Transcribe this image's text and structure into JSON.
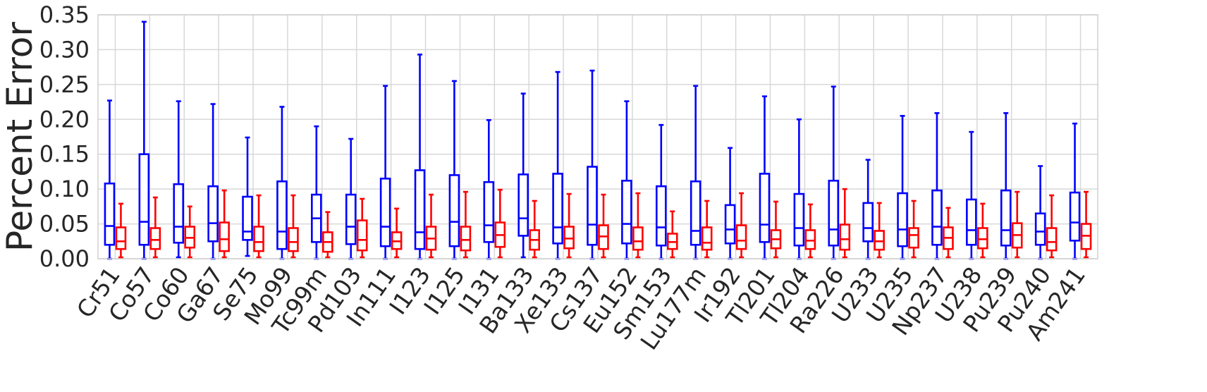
{
  "chart_data": {
    "type": "boxplot",
    "ylabel": "Percent Error",
    "ylim": [
      0,
      0.35
    ],
    "yticks": [
      "0.00",
      "0.05",
      "0.10",
      "0.15",
      "0.20",
      "0.25",
      "0.30",
      "0.35"
    ],
    "grid": true,
    "categories": [
      "Cr51",
      "Co57",
      "Co60",
      "Ga67",
      "Se75",
      "Mo99",
      "Tc99m",
      "Pd103",
      "In111",
      "I123",
      "I125",
      "I131",
      "Ba133",
      "Xe133",
      "Cs137",
      "Eu152",
      "Sm153",
      "Lu177m",
      "Ir192",
      "Tl201",
      "Tl204",
      "Ra226",
      "U233",
      "U235",
      "Np237",
      "U238",
      "Pu239",
      "Pu240",
      "Am241"
    ],
    "series": [
      {
        "color": "#0000ff",
        "boxes": [
          {
            "min": 0.0,
            "q1": 0.02,
            "median": 0.047,
            "q3": 0.108,
            "max": 0.227
          },
          {
            "min": 0.0,
            "q1": 0.02,
            "median": 0.053,
            "q3": 0.15,
            "max": 0.34
          },
          {
            "min": 0.002,
            "q1": 0.023,
            "median": 0.046,
            "q3": 0.107,
            "max": 0.226
          },
          {
            "min": 0.0,
            "q1": 0.025,
            "median": 0.051,
            "q3": 0.104,
            "max": 0.222
          },
          {
            "min": 0.004,
            "q1": 0.027,
            "median": 0.039,
            "q3": 0.089,
            "max": 0.174
          },
          {
            "min": 0.0,
            "q1": 0.014,
            "median": 0.039,
            "q3": 0.111,
            "max": 0.218
          },
          {
            "min": 0.0,
            "q1": 0.024,
            "median": 0.058,
            "q3": 0.092,
            "max": 0.19
          },
          {
            "min": 0.0,
            "q1": 0.021,
            "median": 0.046,
            "q3": 0.092,
            "max": 0.172
          },
          {
            "min": 0.0,
            "q1": 0.018,
            "median": 0.046,
            "q3": 0.115,
            "max": 0.248
          },
          {
            "min": 0.0,
            "q1": 0.014,
            "median": 0.038,
            "q3": 0.127,
            "max": 0.293
          },
          {
            "min": 0.0,
            "q1": 0.018,
            "median": 0.053,
            "q3": 0.12,
            "max": 0.255
          },
          {
            "min": 0.0,
            "q1": 0.024,
            "median": 0.048,
            "q3": 0.11,
            "max": 0.199
          },
          {
            "min": 0.002,
            "q1": 0.033,
            "median": 0.058,
            "q3": 0.121,
            "max": 0.237
          },
          {
            "min": 0.0,
            "q1": 0.022,
            "median": 0.045,
            "q3": 0.122,
            "max": 0.268
          },
          {
            "min": 0.0,
            "q1": 0.02,
            "median": 0.049,
            "q3": 0.132,
            "max": 0.27
          },
          {
            "min": 0.0,
            "q1": 0.022,
            "median": 0.05,
            "q3": 0.112,
            "max": 0.226
          },
          {
            "min": 0.0,
            "q1": 0.019,
            "median": 0.045,
            "q3": 0.104,
            "max": 0.192
          },
          {
            "min": 0.0,
            "q1": 0.02,
            "median": 0.04,
            "q3": 0.111,
            "max": 0.248
          },
          {
            "min": 0.0,
            "q1": 0.022,
            "median": 0.042,
            "q3": 0.077,
            "max": 0.159
          },
          {
            "min": 0.0,
            "q1": 0.024,
            "median": 0.049,
            "q3": 0.122,
            "max": 0.233
          },
          {
            "min": 0.0,
            "q1": 0.019,
            "median": 0.044,
            "q3": 0.093,
            "max": 0.2
          },
          {
            "min": 0.0,
            "q1": 0.019,
            "median": 0.042,
            "q3": 0.112,
            "max": 0.247
          },
          {
            "min": 0.0,
            "q1": 0.025,
            "median": 0.044,
            "q3": 0.08,
            "max": 0.142
          },
          {
            "min": 0.0,
            "q1": 0.018,
            "median": 0.042,
            "q3": 0.094,
            "max": 0.205
          },
          {
            "min": 0.0,
            "q1": 0.02,
            "median": 0.046,
            "q3": 0.098,
            "max": 0.209
          },
          {
            "min": 0.0,
            "q1": 0.02,
            "median": 0.041,
            "q3": 0.085,
            "max": 0.182
          },
          {
            "min": 0.0,
            "q1": 0.019,
            "median": 0.041,
            "q3": 0.098,
            "max": 0.209
          },
          {
            "min": 0.0,
            "q1": 0.02,
            "median": 0.039,
            "q3": 0.065,
            "max": 0.133
          },
          {
            "min": 0.0,
            "q1": 0.026,
            "median": 0.052,
            "q3": 0.095,
            "max": 0.194
          }
        ]
      },
      {
        "color": "#ff0000",
        "boxes": [
          {
            "min": 0.002,
            "q1": 0.014,
            "median": 0.025,
            "q3": 0.045,
            "max": 0.079
          },
          {
            "min": 0.002,
            "q1": 0.014,
            "median": 0.027,
            "q3": 0.044,
            "max": 0.088
          },
          {
            "min": 0.002,
            "q1": 0.016,
            "median": 0.03,
            "q3": 0.046,
            "max": 0.075
          },
          {
            "min": 0.002,
            "q1": 0.011,
            "median": 0.028,
            "q3": 0.052,
            "max": 0.098
          },
          {
            "min": 0.002,
            "q1": 0.011,
            "median": 0.024,
            "q3": 0.046,
            "max": 0.091
          },
          {
            "min": 0.002,
            "q1": 0.011,
            "median": 0.024,
            "q3": 0.044,
            "max": 0.091
          },
          {
            "min": 0.002,
            "q1": 0.01,
            "median": 0.024,
            "q3": 0.038,
            "max": 0.067
          },
          {
            "min": 0.002,
            "q1": 0.012,
            "median": 0.027,
            "q3": 0.055,
            "max": 0.086
          },
          {
            "min": 0.002,
            "q1": 0.014,
            "median": 0.025,
            "q3": 0.038,
            "max": 0.072
          },
          {
            "min": 0.002,
            "q1": 0.013,
            "median": 0.029,
            "q3": 0.046,
            "max": 0.092
          },
          {
            "min": 0.002,
            "q1": 0.012,
            "median": 0.027,
            "q3": 0.046,
            "max": 0.096
          },
          {
            "min": 0.002,
            "q1": 0.017,
            "median": 0.034,
            "q3": 0.052,
            "max": 0.099
          },
          {
            "min": 0.002,
            "q1": 0.013,
            "median": 0.027,
            "q3": 0.041,
            "max": 0.083
          },
          {
            "min": 0.002,
            "q1": 0.015,
            "median": 0.029,
            "q3": 0.046,
            "max": 0.093
          },
          {
            "min": 0.002,
            "q1": 0.014,
            "median": 0.032,
            "q3": 0.048,
            "max": 0.092
          },
          {
            "min": 0.002,
            "q1": 0.013,
            "median": 0.025,
            "q3": 0.045,
            "max": 0.094
          },
          {
            "min": 0.002,
            "q1": 0.014,
            "median": 0.024,
            "q3": 0.036,
            "max": 0.068
          },
          {
            "min": 0.002,
            "q1": 0.013,
            "median": 0.023,
            "q3": 0.045,
            "max": 0.083
          },
          {
            "min": 0.002,
            "q1": 0.014,
            "median": 0.026,
            "q3": 0.048,
            "max": 0.094
          },
          {
            "min": 0.002,
            "q1": 0.015,
            "median": 0.028,
            "q3": 0.041,
            "max": 0.082
          },
          {
            "min": 0.002,
            "q1": 0.014,
            "median": 0.026,
            "q3": 0.041,
            "max": 0.078
          },
          {
            "min": 0.002,
            "q1": 0.013,
            "median": 0.028,
            "q3": 0.049,
            "max": 0.1
          },
          {
            "min": 0.002,
            "q1": 0.013,
            "median": 0.025,
            "q3": 0.04,
            "max": 0.08
          },
          {
            "min": 0.002,
            "q1": 0.016,
            "median": 0.034,
            "q3": 0.044,
            "max": 0.083
          },
          {
            "min": 0.002,
            "q1": 0.014,
            "median": 0.03,
            "q3": 0.045,
            "max": 0.073
          },
          {
            "min": 0.002,
            "q1": 0.015,
            "median": 0.028,
            "q3": 0.044,
            "max": 0.079
          },
          {
            "min": 0.002,
            "q1": 0.016,
            "median": 0.034,
            "q3": 0.051,
            "max": 0.096
          },
          {
            "min": 0.002,
            "q1": 0.012,
            "median": 0.024,
            "q3": 0.044,
            "max": 0.091
          },
          {
            "min": 0.002,
            "q1": 0.014,
            "median": 0.033,
            "q3": 0.05,
            "max": 0.096
          }
        ]
      }
    ]
  }
}
